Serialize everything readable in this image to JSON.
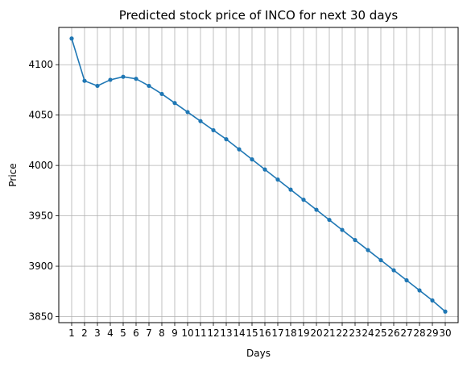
{
  "chart_data": {
    "type": "line",
    "title": "Predicted stock price of INCO for next 30 days",
    "xlabel": "Days",
    "ylabel": "Price",
    "x": [
      1,
      2,
      3,
      4,
      5,
      6,
      7,
      8,
      9,
      10,
      11,
      12,
      13,
      14,
      15,
      16,
      17,
      18,
      19,
      20,
      21,
      22,
      23,
      24,
      25,
      26,
      27,
      28,
      29,
      30
    ],
    "series": [
      {
        "values": [
          4126,
          4084,
          4079,
          4085,
          4088,
          4086,
          4079,
          4071,
          4062,
          4053,
          4044,
          4035,
          4026,
          4016,
          4006,
          3996,
          3986,
          3976,
          3966,
          3956,
          3946,
          3936,
          3926,
          3916,
          3906,
          3896,
          3886,
          3876,
          3866,
          3855
        ]
      }
    ],
    "xticks": [
      "1",
      "2",
      "3",
      "4",
      "5",
      "6",
      "7",
      "8",
      "9",
      "10",
      "11",
      "12",
      "13",
      "14",
      "15",
      "16",
      "17",
      "18",
      "19",
      "20",
      "21",
      "22",
      "23",
      "24",
      "25",
      "26",
      "27",
      "28",
      "29",
      "30"
    ],
    "yticks": [
      3850,
      3900,
      3950,
      4000,
      4050,
      4100
    ],
    "xlim": [
      0,
      31
    ],
    "ylim": [
      3844,
      4137
    ],
    "grid": true,
    "line_color": "#1f77b4",
    "marker": "dot"
  }
}
